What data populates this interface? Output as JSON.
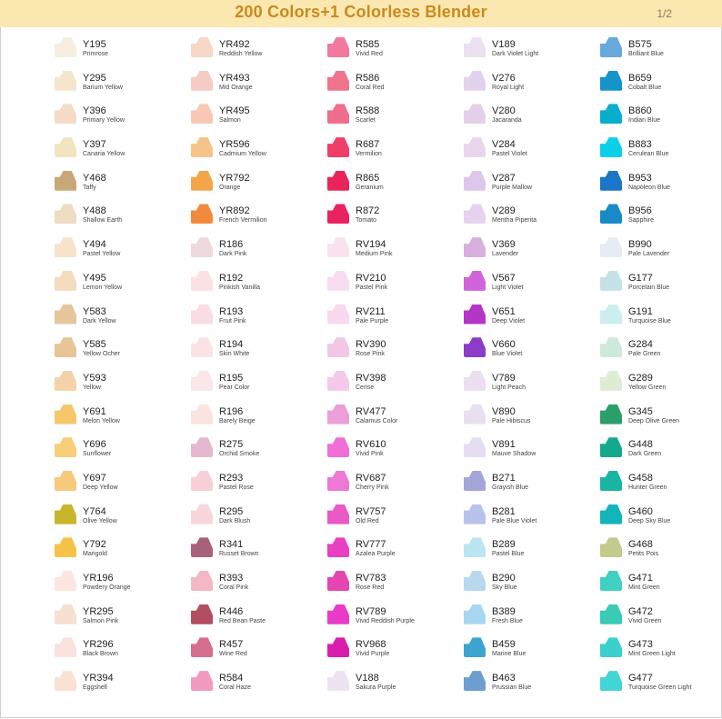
{
  "header": {
    "title": "200 Colors+1 Colorless Blender",
    "page": "1/2",
    "background": "#fbe7b0",
    "title_color": "#c98a1c"
  },
  "columns": [
    [
      {
        "code": "Y195",
        "name": "Primrose",
        "color": "#f7eee2"
      },
      {
        "code": "Y295",
        "name": "Barium Yellow",
        "color": "#f4e5cc"
      },
      {
        "code": "Y396",
        "name": "Primary Yellow",
        "color": "#f5dcc6"
      },
      {
        "code": "Y397",
        "name": "Canaria Yellow",
        "color": "#f2e4bf"
      },
      {
        "code": "Y468",
        "name": "Taffy",
        "color": "#c9a878"
      },
      {
        "code": "Y488",
        "name": "Shallow Earth",
        "color": "#eedcc3"
      },
      {
        "code": "Y494",
        "name": "Pastel Yellow",
        "color": "#f8e2cb"
      },
      {
        "code": "Y495",
        "name": "Lemon Yellow",
        "color": "#f4dcbf"
      },
      {
        "code": "Y583",
        "name": "Dark Yellow",
        "color": "#e5c69c"
      },
      {
        "code": "Y585",
        "name": "Yellow Ocher",
        "color": "#e8c496"
      },
      {
        "code": "Y593",
        "name": "Yellow",
        "color": "#f3d2a9"
      },
      {
        "code": "Y691",
        "name": "Melon Yellow",
        "color": "#f5c76a"
      },
      {
        "code": "Y696",
        "name": "Sunflower",
        "color": "#f6cf78"
      },
      {
        "code": "Y697",
        "name": "Deep Yellow",
        "color": "#f6c97c"
      },
      {
        "code": "Y764",
        "name": "Olive Yellow",
        "color": "#c7b52c"
      },
      {
        "code": "Y792",
        "name": "Marigold",
        "color": "#f7c249"
      },
      {
        "code": "YR196",
        "name": "Powdery Orange",
        "color": "#fbe6e2"
      },
      {
        "code": "YR295",
        "name": "Salmon Pink",
        "color": "#f7dfd2"
      },
      {
        "code": "YR296",
        "name": "Black Brown",
        "color": "#fae0df"
      },
      {
        "code": "YR394",
        "name": "Eggshell",
        "color": "#fae1d3"
      }
    ],
    [
      {
        "code": "YR492",
        "name": "Reddish Yellow",
        "color": "#f8d7c6"
      },
      {
        "code": "YR493",
        "name": "Mid Orange",
        "color": "#f6cbc3"
      },
      {
        "code": "YR495",
        "name": "Salmon",
        "color": "#f8c8b5"
      },
      {
        "code": "YR596",
        "name": "Cadmium Yellow",
        "color": "#f6c48a"
      },
      {
        "code": "YR792",
        "name": "Orange",
        "color": "#f4a54a"
      },
      {
        "code": "YR892",
        "name": "French Vermilion",
        "color": "#f28a3c"
      },
      {
        "code": "R186",
        "name": "Dark Pink",
        "color": "#eed9dc"
      },
      {
        "code": "R192",
        "name": "Pinkish Vanilla",
        "color": "#f9e1e4"
      },
      {
        "code": "R193",
        "name": "Fruit Pink",
        "color": "#fadde2"
      },
      {
        "code": "R194",
        "name": "Skin White",
        "color": "#fbe3e5"
      },
      {
        "code": "R195",
        "name": "Pear Color",
        "color": "#fbe6e8"
      },
      {
        "code": "R196",
        "name": "Barely Beige",
        "color": "#fbe3e1"
      },
      {
        "code": "R275",
        "name": "Orchid Smoke",
        "color": "#e4b9cf"
      },
      {
        "code": "R293",
        "name": "Pastel Rose",
        "color": "#f8cfd6"
      },
      {
        "code": "R295",
        "name": "Dark Blush",
        "color": "#f8d6dc"
      },
      {
        "code": "R341",
        "name": "Russet Brown",
        "color": "#a8617a"
      },
      {
        "code": "R393",
        "name": "Coral Pink",
        "color": "#f4b7c5"
      },
      {
        "code": "R446",
        "name": "Red Bean Paste",
        "color": "#b34e62"
      },
      {
        "code": "R457",
        "name": "Wine Red",
        "color": "#d56d8c"
      },
      {
        "code": "R584",
        "name": "Coral Haze",
        "color": "#f29ac0"
      }
    ],
    [
      {
        "code": "R585",
        "name": "Vivid Red",
        "color": "#f378a0"
      },
      {
        "code": "R586",
        "name": "Coral Red",
        "color": "#f0738c"
      },
      {
        "code": "R588",
        "name": "Scarlet",
        "color": "#ef6e8e"
      },
      {
        "code": "R687",
        "name": "Vermilion",
        "color": "#ee3f6a"
      },
      {
        "code": "R865",
        "name": "Geranium",
        "color": "#e8245a"
      },
      {
        "code": "R872",
        "name": "Tomato",
        "color": "#ea2360"
      },
      {
        "code": "RV194",
        "name": "Medium Pink",
        "color": "#f9e2ee"
      },
      {
        "code": "RV210",
        "name": "Pastel Pink",
        "color": "#f8dcf0"
      },
      {
        "code": "RV211",
        "name": "Pale Purple",
        "color": "#f8d9ee"
      },
      {
        "code": "RV390",
        "name": "Rose Pink",
        "color": "#f3c6e3"
      },
      {
        "code": "RV398",
        "name": "Cerise",
        "color": "#f5c9ea"
      },
      {
        "code": "RV477",
        "name": "Calamus Color",
        "color": "#ec9ed8"
      },
      {
        "code": "RV610",
        "name": "Vivid Pink",
        "color": "#f06fd6"
      },
      {
        "code": "RV687",
        "name": "Cherry Pink",
        "color": "#ee78d6"
      },
      {
        "code": "RV757",
        "name": "Old Red",
        "color": "#ea59c4"
      },
      {
        "code": "RV777",
        "name": "Azalea Purple",
        "color": "#e840c0"
      },
      {
        "code": "RV783",
        "name": "Rose Red",
        "color": "#e346b0"
      },
      {
        "code": "RV789",
        "name": "Vivid Reddish Purple",
        "color": "#e93bc8"
      },
      {
        "code": "RV968",
        "name": "Vivid Purple",
        "color": "#d91eae"
      },
      {
        "code": "V188",
        "name": "Sakura Purple",
        "color": "#ece2f0"
      }
    ],
    [
      {
        "code": "V189",
        "name": "Dark Violet Light",
        "color": "#ebe1f1"
      },
      {
        "code": "V276",
        "name": "Royal Light",
        "color": "#e2d2ee"
      },
      {
        "code": "V280",
        "name": "Jacaranda",
        "color": "#e4cfea"
      },
      {
        "code": "V284",
        "name": "Pastel Violet",
        "color": "#e9d6ee"
      },
      {
        "code": "V287",
        "name": "Purple Mallow",
        "color": "#dfc7ec"
      },
      {
        "code": "V289",
        "name": "Mentha Piperita",
        "color": "#e6d2ee"
      },
      {
        "code": "V369",
        "name": "Lavender",
        "color": "#d7aede"
      },
      {
        "code": "V567",
        "name": "Light Violet",
        "color": "#cf63d9"
      },
      {
        "code": "V651",
        "name": "Deep Violet",
        "color": "#b436c7"
      },
      {
        "code": "V660",
        "name": "Blue Violet",
        "color": "#8c3cc8"
      },
      {
        "code": "V789",
        "name": "Light Peach",
        "color": "#ecdff0"
      },
      {
        "code": "V890",
        "name": "Pale Hibiscus",
        "color": "#e9e0ef"
      },
      {
        "code": "V891",
        "name": "Mauve Shadow",
        "color": "#e6def0"
      },
      {
        "code": "B271",
        "name": "Grayish Blue",
        "color": "#a3a6d6"
      },
      {
        "code": "B281",
        "name": "Pale Blue Violet",
        "color": "#b9c2ea"
      },
      {
        "code": "B289",
        "name": "Pastel Blue",
        "color": "#b9e6f0"
      },
      {
        "code": "B290",
        "name": "Sky Blue",
        "color": "#b7d8ef"
      },
      {
        "code": "B389",
        "name": "Fresh Blue",
        "color": "#a7d6f0"
      },
      {
        "code": "B459",
        "name": "Marine Blue",
        "color": "#3ba4cf"
      },
      {
        "code": "B463",
        "name": "Prussian Blue",
        "color": "#6d9ed0"
      }
    ],
    [
      {
        "code": "B575",
        "name": "Brilliant Blue",
        "color": "#67a9dc"
      },
      {
        "code": "B659",
        "name": "Cobalt Blue",
        "color": "#1494c9"
      },
      {
        "code": "B860",
        "name": "Indian Blue",
        "color": "#0aaecd"
      },
      {
        "code": "B883",
        "name": "Cerulean Blue",
        "color": "#0bd0ea"
      },
      {
        "code": "B953",
        "name": "Napoleon Blue",
        "color": "#1a76c6"
      },
      {
        "code": "B956",
        "name": "Sapphire",
        "color": "#1a8ac7"
      },
      {
        "code": "B990",
        "name": "Pale Lavender",
        "color": "#e6ecf3"
      },
      {
        "code": "G177",
        "name": "Porcelain Blue",
        "color": "#c5e3e6"
      },
      {
        "code": "G191",
        "name": "Turquoise Blue",
        "color": "#cdeeee"
      },
      {
        "code": "G284",
        "name": "Pale Green",
        "color": "#cde9d9"
      },
      {
        "code": "G289",
        "name": "Yellow Green",
        "color": "#dcedd3"
      },
      {
        "code": "G345",
        "name": "Deep Olive Green",
        "color": "#2c9e6a"
      },
      {
        "code": "G448",
        "name": "Dark Green",
        "color": "#16a88c"
      },
      {
        "code": "G458",
        "name": "Hunter Green",
        "color": "#1ab5a1"
      },
      {
        "code": "G460",
        "name": "Deep Sky Blue",
        "color": "#12b5ba"
      },
      {
        "code": "G468",
        "name": "Petits Pois",
        "color": "#c6c98d"
      },
      {
        "code": "G471",
        "name": "Mint Green",
        "color": "#3fd2c1"
      },
      {
        "code": "G472",
        "name": "Vivid Green",
        "color": "#3acbb5"
      },
      {
        "code": "G473",
        "name": "Mint Green Light",
        "color": "#3ad0cc"
      },
      {
        "code": "G477",
        "name": "Turquoise Green Light",
        "color": "#41d6d3"
      }
    ]
  ]
}
